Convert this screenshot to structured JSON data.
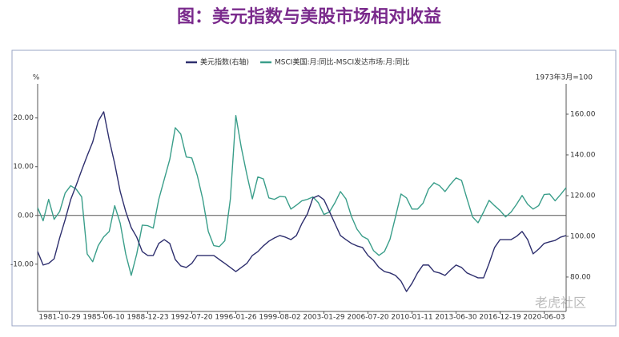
{
  "page_title": "图：美元指数与美股市场相对收益",
  "watermark": "老虎社区",
  "chart_data": {
    "type": "line",
    "y_label": "%",
    "y2_label": "1973年3月=100",
    "categories": [
      null,
      null,
      null,
      null,
      "1981-10-29",
      null,
      null,
      null,
      null,
      null,
      null,
      null,
      "1985-06-10",
      null,
      null,
      null,
      null,
      null,
      null,
      null,
      "1988-12-23",
      null,
      null,
      null,
      null,
      null,
      null,
      null,
      "1992-07-20",
      null,
      null,
      null,
      null,
      null,
      null,
      null,
      "1996-01-26",
      null,
      null,
      null,
      null,
      null,
      null,
      null,
      "1999-08-02",
      null,
      null,
      null,
      null,
      null,
      null,
      null,
      "2003-01-29",
      null,
      null,
      null,
      null,
      null,
      null,
      null,
      "2006-07-20",
      null,
      null,
      null,
      null,
      null,
      null,
      null,
      "2010-01-11",
      null,
      null,
      null,
      null,
      null,
      null,
      null,
      "2013-06-30",
      null,
      null,
      null,
      null,
      null,
      null,
      null,
      "2016-12-19",
      null,
      null,
      null,
      null,
      null,
      null,
      null,
      "2020-06-03",
      null,
      null,
      null,
      null
    ],
    "series": [
      {
        "name": "美元指数(右轴)",
        "color": "#2e2f6e",
        "axis": "y2",
        "values": [
          92.5,
          85.9,
          86.7,
          89.0,
          99.2,
          108.2,
          118.0,
          125.1,
          132.5,
          139.6,
          146.3,
          156.5,
          161.2,
          147.5,
          135.7,
          122.0,
          112.2,
          104.3,
          99.6,
          92.5,
          90.6,
          90.6,
          96.5,
          98.4,
          96.5,
          88.6,
          85.5,
          84.7,
          86.7,
          90.6,
          90.6,
          90.6,
          90.6,
          88.6,
          86.7,
          84.7,
          82.7,
          84.7,
          86.7,
          90.6,
          92.5,
          95.3,
          97.6,
          99.2,
          100.4,
          99.6,
          98.4,
          100.4,
          106.3,
          111.0,
          118.8,
          120.0,
          118.0,
          112.2,
          106.3,
          100.4,
          98.4,
          96.5,
          95.3,
          94.5,
          90.6,
          88.2,
          84.7,
          82.7,
          82.0,
          80.8,
          78.0,
          72.9,
          76.9,
          82.0,
          85.9,
          85.9,
          82.7,
          82.0,
          80.8,
          83.5,
          85.9,
          84.7,
          82.0,
          80.8,
          79.6,
          79.6,
          86.7,
          94.5,
          98.4,
          98.4,
          98.4,
          100.0,
          102.4,
          98.4,
          91.4,
          93.7,
          96.5,
          97.3,
          98.0,
          99.6,
          100.4
        ]
      },
      {
        "name": "MSCI美国:月:同比-MSCI发达市场:月:同比",
        "color": "#3a9e8a",
        "values": [
          1.6,
          -1.1,
          3.3,
          -0.8,
          0.8,
          4.6,
          6.1,
          5.4,
          3.8,
          -7.9,
          -9.5,
          -6.2,
          -4.4,
          -3.3,
          2.0,
          -1.6,
          -7.9,
          -12.3,
          -7.9,
          -2.0,
          -2.1,
          -2.6,
          3.3,
          7.4,
          11.5,
          18.0,
          16.7,
          12.0,
          11.8,
          8.2,
          3.3,
          -3.3,
          -6.2,
          -6.4,
          -5.2,
          3.3,
          20.5,
          13.9,
          8.4,
          3.4,
          7.9,
          7.5,
          3.6,
          3.3,
          3.9,
          3.8,
          1.3,
          2.1,
          3.0,
          3.3,
          3.8,
          2.6,
          0.2,
          0.7,
          2.6,
          4.9,
          3.4,
          -0.2,
          -2.8,
          -4.3,
          -4.9,
          -7.2,
          -8.2,
          -7.4,
          -4.9,
          -0.3,
          4.4,
          3.6,
          1.3,
          1.3,
          2.5,
          5.4,
          6.7,
          6.1,
          4.9,
          6.4,
          7.7,
          7.2,
          3.4,
          -0.3,
          -1.5,
          0.7,
          3.1,
          2.0,
          1.0,
          -0.3,
          0.7,
          2.3,
          4.1,
          2.3,
          1.3,
          2.0,
          4.3,
          4.4,
          3.0,
          4.3,
          5.7
        ]
      }
    ],
    "ylim": [
      -19.7,
      27
    ],
    "yticks": [
      {
        "value": -10,
        "label": "-10.00"
      },
      {
        "value": 0,
        "label": "0.00"
      },
      {
        "value": 10,
        "label": "10.00"
      },
      {
        "value": 20,
        "label": "20.00"
      }
    ],
    "y2lim": [
      63.1,
      174.9
    ],
    "y2ticks": [
      {
        "value": 80,
        "label": "80.00"
      },
      {
        "value": 100,
        "label": "100.00"
      },
      {
        "value": 120,
        "label": "120.00"
      },
      {
        "value": 140,
        "label": "140.00"
      },
      {
        "value": 160,
        "label": "160.00"
      }
    ],
    "grid": false,
    "legend": "top"
  }
}
